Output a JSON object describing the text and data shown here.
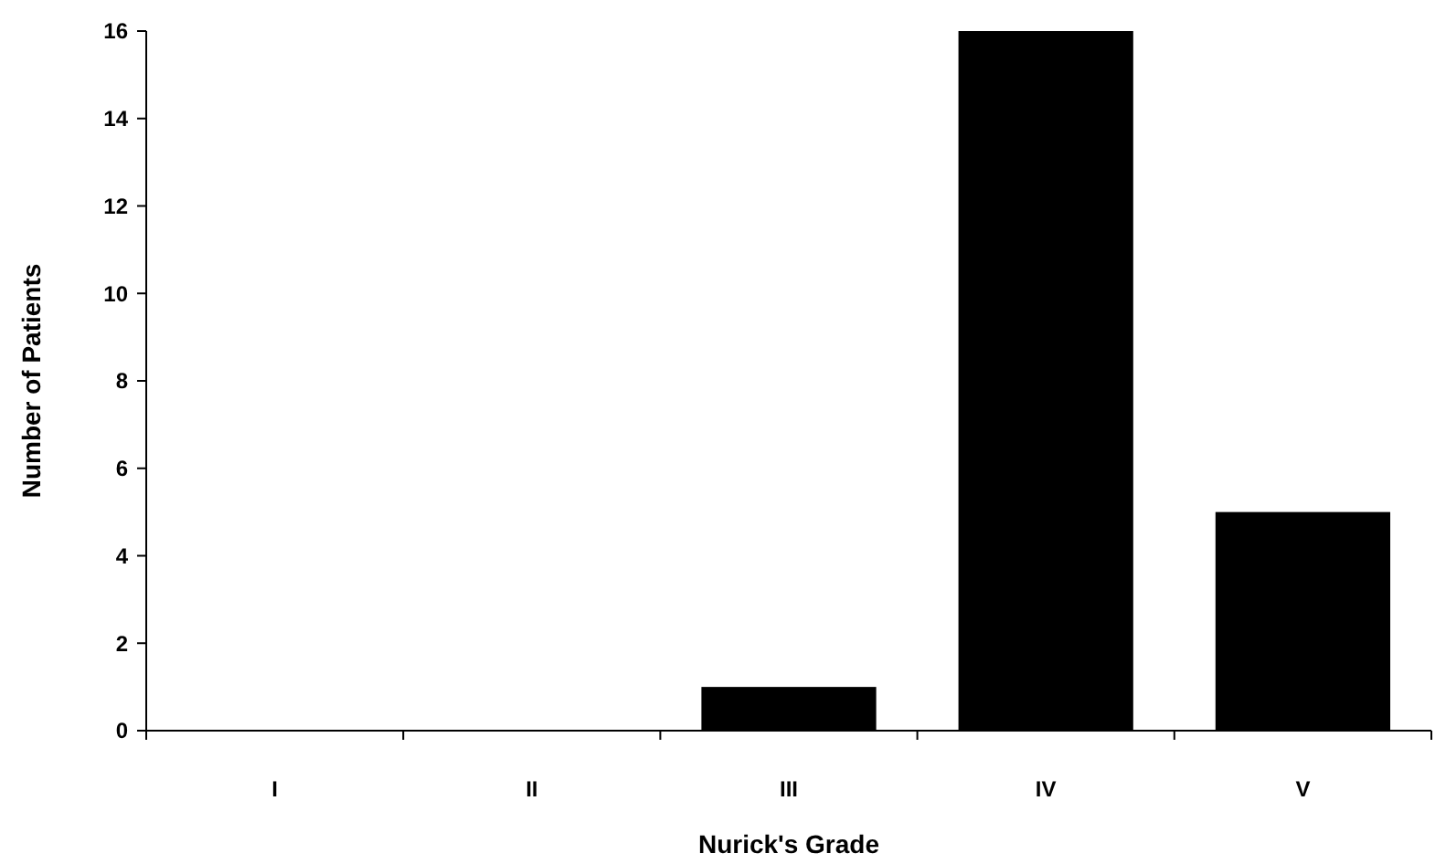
{
  "chart_data": {
    "type": "bar",
    "xlabel": "Nurick's Grade",
    "ylabel": "Number of Patients",
    "categories": [
      "I",
      "II",
      "III",
      "IV",
      "V"
    ],
    "values": [
      0,
      0,
      1,
      16,
      5
    ],
    "color": "#000000",
    "ylim": [
      0,
      16
    ],
    "yticks": [
      0,
      2,
      4,
      6,
      8,
      10,
      12,
      14,
      16
    ],
    "grid": false
  }
}
